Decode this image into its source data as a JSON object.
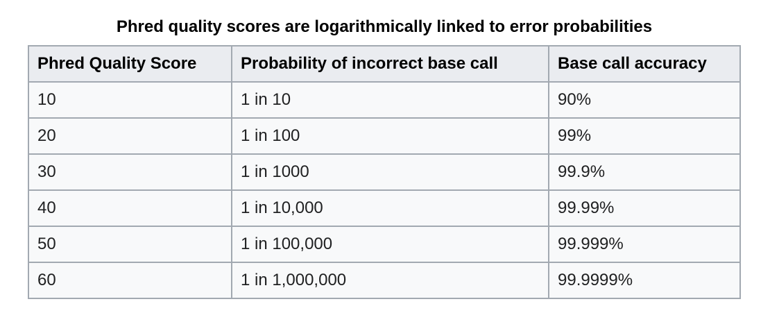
{
  "caption": "Phred quality scores are logarithmically linked to error probabilities",
  "table": {
    "headers": [
      "Phred Quality Score",
      "Probability of incorrect base call",
      "Base call accuracy"
    ],
    "rows": [
      [
        "10",
        "1 in 10",
        "90%"
      ],
      [
        "20",
        "1 in 100",
        "99%"
      ],
      [
        "30",
        "1 in 1000",
        "99.9%"
      ],
      [
        "40",
        "1 in 10,000",
        "99.99%"
      ],
      [
        "50",
        "1 in 100,000",
        "99.999%"
      ],
      [
        "60",
        "1 in 1,000,000",
        "99.9999%"
      ]
    ]
  }
}
